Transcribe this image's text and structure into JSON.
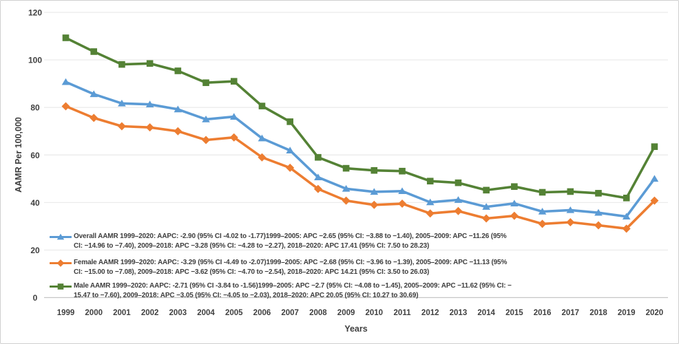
{
  "page": {
    "background": "#ffffff",
    "border_color": "#cfcfcf"
  },
  "chart_data": {
    "type": "line",
    "title": "",
    "xlabel": "Years",
    "ylabel": "AAMR Per 100,000",
    "ylim": [
      0,
      120
    ],
    "yticks": [
      0,
      20,
      40,
      60,
      80,
      100,
      120
    ],
    "grid": "horizontal",
    "legend_position": "inside-lower-left",
    "categories": [
      "1999",
      "2000",
      "2001",
      "2002",
      "2003",
      "2004",
      "2005",
      "2006",
      "2007",
      "2008",
      "2009",
      "2010",
      "2011",
      "2012",
      "2013",
      "2014",
      "2015",
      "2016",
      "2017",
      "2018",
      "2019",
      "2020"
    ],
    "series": [
      {
        "name": "Overall AAMR",
        "marker": "triangle",
        "color": "#5B9BD5",
        "values": [
          90.7,
          85.6,
          81.7,
          81.3,
          79.2,
          75.0,
          76.1,
          67.0,
          61.9,
          50.6,
          45.8,
          44.5,
          44.8,
          40.1,
          41.1,
          38.2,
          39.6,
          36.2,
          36.8,
          35.7,
          34.1,
          50.0
        ]
      },
      {
        "name": "Female AAMR",
        "marker": "diamond",
        "color": "#ED7D31",
        "values": [
          80.5,
          75.6,
          72.1,
          71.6,
          70.0,
          66.3,
          67.4,
          59.0,
          54.6,
          45.7,
          40.8,
          39.0,
          39.5,
          35.4,
          36.4,
          33.3,
          34.4,
          31.0,
          31.7,
          30.4,
          29.0,
          40.8
        ]
      },
      {
        "name": "Male AAMR",
        "marker": "square",
        "color": "#548235",
        "values": [
          109.3,
          103.5,
          98.1,
          98.5,
          95.4,
          90.4,
          91.0,
          80.6,
          74.0,
          59.0,
          54.4,
          53.5,
          53.2,
          49.0,
          48.3,
          45.2,
          46.7,
          44.3,
          44.6,
          43.9,
          41.9,
          63.5
        ]
      }
    ],
    "legend": [
      {
        "series": "Overall AAMR",
        "lines": [
          "Overall AAMR 1999–2020: AAPC: -2.90 (95% CI -4.02 to -1.77)1999–2005: APC −2.65 (95% CI: −3.88 to −1.40), 2005–2009: APC −11.26 (95%",
          "CI: −14.96 to −7.40), 2009–2018: APC −3.28 (95% CI: −4.28 to −2.27), 2018–2020: APC 17.41 (95% CI: 7.50 to 28.23)"
        ]
      },
      {
        "series": "Female AAMR",
        "lines": [
          "Female AAMR 1999–2020: AAPC: -3.29 (95% CI -4.49 to -2.07)1999–2005: APC −2.68 (95% CI: −3.96 to −1.39), 2005–2009: APC −11.13 (95%",
          "CI: −15.00 to −7.08), 2009–2018: APC −3.62 (95% CI: −4.70 to −2.54), 2018–2020: APC 14.21 (95% CI: 3.50 to 26.03)"
        ]
      },
      {
        "series": "Male AAMR",
        "lines": [
          "Male AAMR 1999–2020: AAPC: -2.71 (95% CI -3.84 to -1.56)1999–2005: APC −2.7 (95% CI: −4.08 to −1.45), 2005–2009: APC −11.62 (95% CI: −",
          "15.47 to −7.60), 2009–2018: APC −3.05 (95% CI: −4.05 to −2.03), 2018–2020: APC 20.05 (95% CI: 10.27 to 30.69)"
        ]
      }
    ],
    "colors": {
      "gridline": "#E9E9E9",
      "axis_line": "#C6C6C6",
      "tick_text": "#404040",
      "legend_text": "#3D3D3D"
    }
  }
}
